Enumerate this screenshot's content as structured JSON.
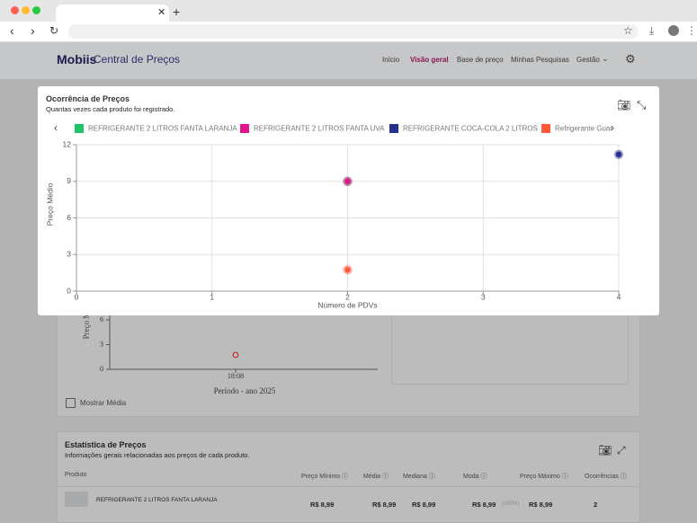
{
  "header": {
    "brand": "Mobiis",
    "product": "Central de Preços",
    "nav": [
      "Início",
      "Visão geral",
      "Base de preço",
      "Minhas Pesquisas",
      "Gestão"
    ]
  },
  "background_panel": {
    "y_label": "Preço M",
    "yticks": [
      0,
      3,
      6
    ],
    "categories": [
      "18:08"
    ],
    "values": [
      1.75
    ],
    "x_label": "Período - ano 2025",
    "checkbox": "Mostrar Média"
  },
  "stats": {
    "title": "Estatística de Preços",
    "subtitle": "Informações gerais relacionadas aos preços de cada produto.",
    "columns": [
      "Produto",
      "Preço Mínimo",
      "Média",
      "Mediana",
      "Moda",
      "Preço Máximo",
      "Ocorrências"
    ],
    "rows": [
      [
        "REFRIGERANTE 2 LITROS FANTA LARANJA",
        "R$ 8,99",
        "R$ 8,99",
        "R$ 8,99",
        "R$ 8,99",
        "R$ 8,99",
        "2"
      ]
    ],
    "moda_share": "(100%)"
  },
  "chart_data": {
    "type": "scatter",
    "title": "Ocorrência de Preços",
    "subtitle": "Quantas vezes cada produto foi registrado.",
    "x_label": "Número de PDVs",
    "y_label": "Preço Médio",
    "xlim": [
      0,
      4
    ],
    "ylim": [
      0,
      12
    ],
    "xticks": [
      0,
      1,
      2,
      3,
      4
    ],
    "yticks": [
      0,
      3,
      6,
      9,
      12
    ],
    "grid": true,
    "series": [
      {
        "name": "REFRIGERANTE 2 LITROS FANTA LARANJA",
        "color": "#1ec36b",
        "x": [
          2
        ],
        "values": [
          8.99
        ]
      },
      {
        "name": "REFRIGERANTE 2 LITROS FANTA UVA",
        "color": "#e4168f",
        "x": [
          2
        ],
        "values": [
          9
        ]
      },
      {
        "name": "REFRIGERANTE COCA-COLA 2 LITROS",
        "color": "#27308f",
        "x": [
          4
        ],
        "values": [
          11.2
        ]
      },
      {
        "name": "Refrigerante Guar",
        "color": "#ff5a3a",
        "x": [
          2
        ],
        "values": [
          1.75
        ]
      }
    ]
  }
}
